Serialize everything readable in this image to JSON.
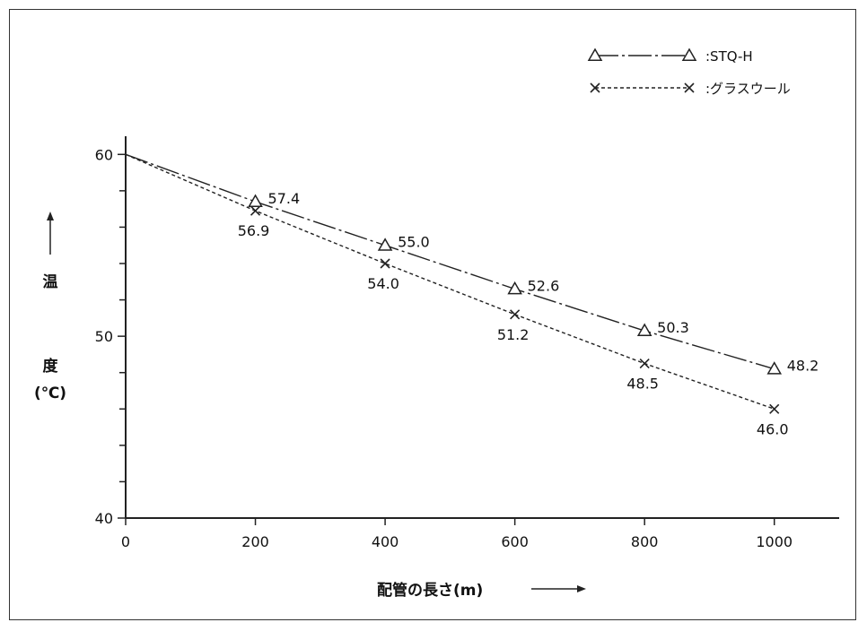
{
  "chart_data": {
    "type": "line",
    "title": "",
    "xlabel": "配管の長さ(m)",
    "ylabel_chars": [
      "温",
      "度",
      "(℃)"
    ],
    "xlim": [
      0,
      1100
    ],
    "ylim": [
      40,
      61
    ],
    "x_ticks": [
      0,
      200,
      400,
      600,
      800,
      1000
    ],
    "y_ticks_labeled": [
      40,
      50,
      60
    ],
    "y_minor_step": 2,
    "legend_position": "top-right",
    "series": [
      {
        "name": ":STQ-H",
        "marker": "triangle",
        "line_style": "dash-dot",
        "x": [
          0,
          200,
          400,
          600,
          800,
          1000
        ],
        "y": [
          60,
          57.4,
          55.0,
          52.6,
          50.3,
          48.2
        ],
        "labels": [
          "",
          "57.4",
          "55.0",
          "52.6",
          "50.3",
          "48.2"
        ]
      },
      {
        "name": ":グラスウール",
        "marker": "cross",
        "line_style": "dotted",
        "x": [
          0,
          200,
          400,
          600,
          800,
          1000
        ],
        "y": [
          60,
          56.9,
          54.0,
          51.2,
          48.5,
          46.0
        ],
        "labels": [
          "",
          "56.9",
          "54.0",
          "51.2",
          "48.5",
          "46.0"
        ]
      }
    ],
    "colors": {
      "line": "#222222",
      "text": "#111111"
    }
  }
}
